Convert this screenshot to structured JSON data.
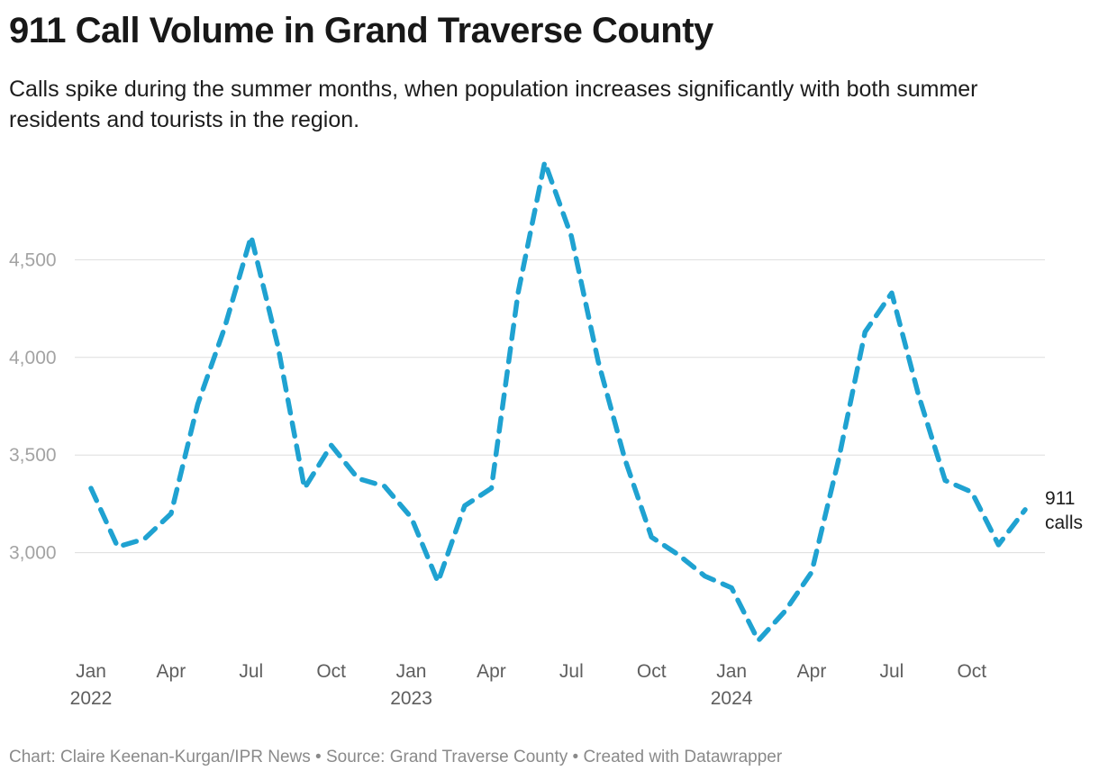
{
  "header": {
    "title": "911 Call Volume in Grand Traverse County",
    "subtitle": "Calls spike during the summer months, when population increases significantly with both summer residents and tourists in the region."
  },
  "footer": {
    "parts": [
      "Chart: Claire Keenan-Kurgan/IPR News",
      "Source: Grand Traverse County",
      "Created with Datawrapper"
    ],
    "separator": " • "
  },
  "colors": {
    "line": "#1fa2d1",
    "grid": "#dddddd",
    "axis_text": "#a3a3a3"
  },
  "chart_data": {
    "type": "line",
    "title": "911 Call Volume in Grand Traverse County",
    "xlabel": "",
    "ylabel": "",
    "ylim": [
      2500,
      5000
    ],
    "yticks": [
      3000,
      3500,
      4000,
      4500
    ],
    "ytick_labels": [
      "3,000",
      "3,500",
      "4,000",
      "4,500"
    ],
    "xticks": [
      {
        "index": 0,
        "label": "Jan",
        "year": "2022"
      },
      {
        "index": 3,
        "label": "Apr"
      },
      {
        "index": 6,
        "label": "Jul"
      },
      {
        "index": 9,
        "label": "Oct"
      },
      {
        "index": 12,
        "label": "Jan",
        "year": "2023"
      },
      {
        "index": 15,
        "label": "Apr"
      },
      {
        "index": 18,
        "label": "Jul"
      },
      {
        "index": 21,
        "label": "Oct"
      },
      {
        "index": 24,
        "label": "Jan",
        "year": "2024"
      },
      {
        "index": 27,
        "label": "Apr"
      },
      {
        "index": 30,
        "label": "Jul"
      },
      {
        "index": 33,
        "label": "Oct"
      }
    ],
    "series": [
      {
        "name": "911 calls",
        "label_lines": [
          "911",
          "calls"
        ],
        "style": "dashed",
        "x": [
          "2022-01",
          "2022-02",
          "2022-03",
          "2022-04",
          "2022-05",
          "2022-06",
          "2022-07",
          "2022-08",
          "2022-09",
          "2022-10",
          "2022-11",
          "2022-12",
          "2023-01",
          "2023-02",
          "2023-03",
          "2023-04",
          "2023-05",
          "2023-06",
          "2023-07",
          "2023-08",
          "2023-09",
          "2023-10",
          "2023-11",
          "2023-12",
          "2024-01",
          "2024-02",
          "2024-03",
          "2024-04",
          "2024-05",
          "2024-06",
          "2024-07",
          "2024-08",
          "2024-09",
          "2024-10",
          "2024-11",
          "2024-12"
        ],
        "values": [
          3330,
          3030,
          3070,
          3200,
          3760,
          4150,
          4620,
          4060,
          3330,
          3550,
          3380,
          3340,
          3180,
          2850,
          3240,
          3330,
          4330,
          5000,
          4620,
          3980,
          3480,
          3080,
          2990,
          2880,
          2820,
          2550,
          2700,
          2900,
          3470,
          4130,
          4330,
          3810,
          3370,
          3310,
          3040,
          3220
        ]
      }
    ]
  }
}
